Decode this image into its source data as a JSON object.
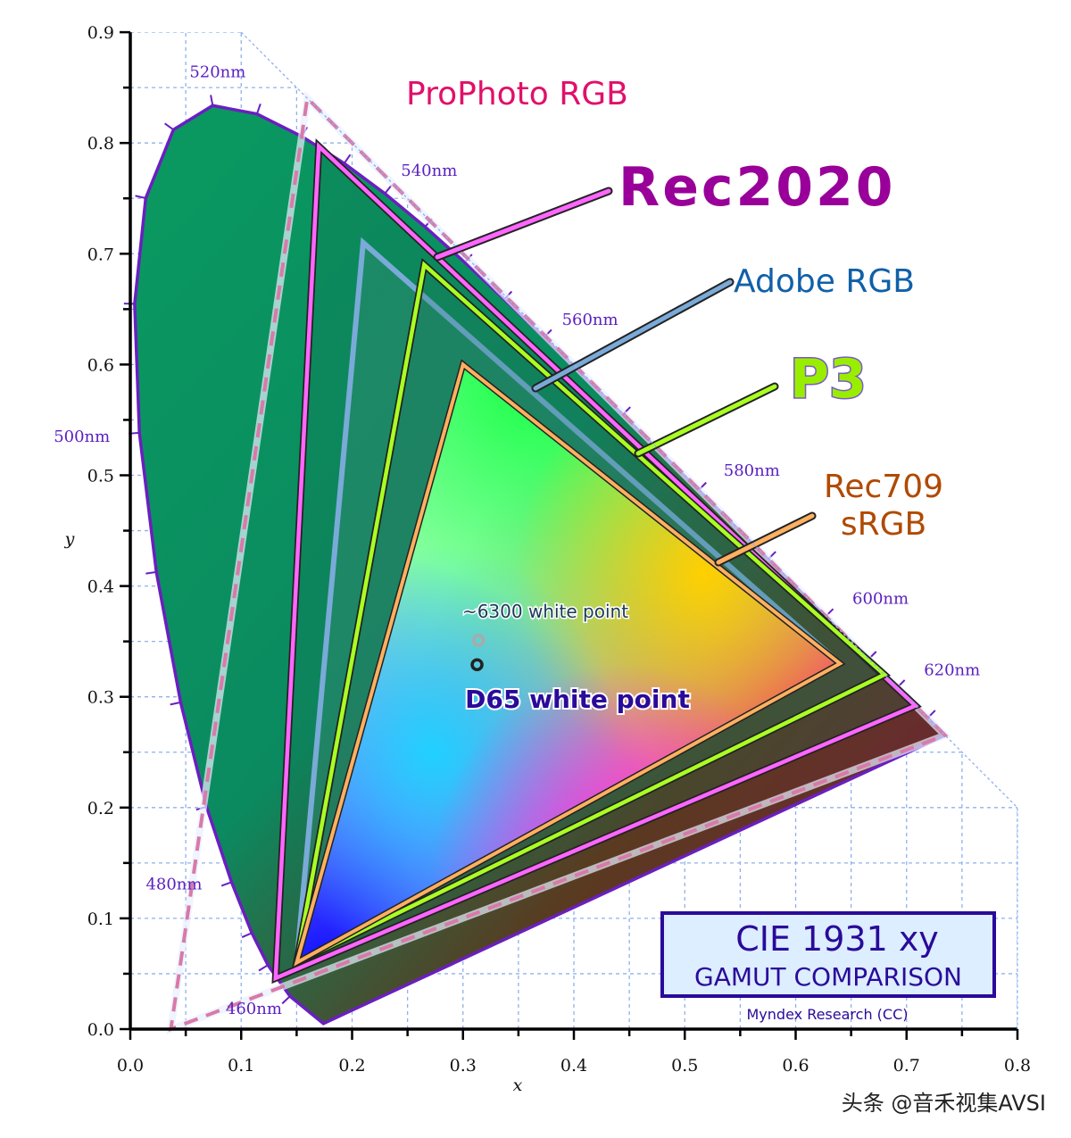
{
  "chart_data": {
    "type": "scatter",
    "title": "CIE 1931 xy",
    "subtitle": "GAMUT COMPARISON",
    "credit": "Myndex Research (CC)",
    "xlabel": "x",
    "ylabel": "y",
    "xlim": [
      0,
      0.8
    ],
    "ylim": [
      0,
      0.9
    ],
    "grid": true,
    "x_ticks": [
      "0.0",
      "0.1",
      "0.2",
      "0.3",
      "0.4",
      "0.5",
      "0.6",
      "0.7",
      "0.8"
    ],
    "y_ticks": [
      "0.0",
      "0.1",
      "0.2",
      "0.3",
      "0.4",
      "0.5",
      "0.6",
      "0.7",
      "0.8",
      "0.9"
    ],
    "spectral_locus": [
      [
        380,
        0.1741,
        0.005
      ],
      [
        460,
        0.144,
        0.0297
      ],
      [
        470,
        0.1241,
        0.0578
      ],
      [
        475,
        0.1096,
        0.0868
      ],
      [
        480,
        0.0913,
        0.1327
      ],
      [
        485,
        0.0687,
        0.2007
      ],
      [
        490,
        0.0454,
        0.295
      ],
      [
        495,
        0.0235,
        0.4127
      ],
      [
        500,
        0.0082,
        0.5384
      ],
      [
        505,
        0.0039,
        0.6548
      ],
      [
        510,
        0.0139,
        0.7502
      ],
      [
        515,
        0.0389,
        0.812
      ],
      [
        520,
        0.0743,
        0.8338
      ],
      [
        525,
        0.1142,
        0.8262
      ],
      [
        530,
        0.1547,
        0.8059
      ],
      [
        535,
        0.1929,
        0.7816
      ],
      [
        540,
        0.2296,
        0.7543
      ],
      [
        545,
        0.2658,
        0.7243
      ],
      [
        550,
        0.3016,
        0.6923
      ],
      [
        555,
        0.3373,
        0.6589
      ],
      [
        560,
        0.3731,
        0.6245
      ],
      [
        570,
        0.4441,
        0.5547
      ],
      [
        580,
        0.5125,
        0.4866
      ],
      [
        590,
        0.5752,
        0.4242
      ],
      [
        600,
        0.627,
        0.3725
      ],
      [
        610,
        0.6658,
        0.334
      ],
      [
        620,
        0.6915,
        0.3083
      ],
      [
        640,
        0.719,
        0.2809
      ],
      [
        700,
        0.7347,
        0.2653
      ]
    ],
    "wavelength_labels": [
      {
        "nm": 460,
        "label": "460nm"
      },
      {
        "nm": 480,
        "label": "480nm"
      },
      {
        "nm": 500,
        "label": "500nm"
      },
      {
        "nm": 520,
        "label": "520nm"
      },
      {
        "nm": 540,
        "label": "540nm"
      },
      {
        "nm": 560,
        "label": "560nm"
      },
      {
        "nm": 580,
        "label": "580nm"
      },
      {
        "nm": 600,
        "label": "600nm"
      },
      {
        "nm": 620,
        "label": "620nm"
      }
    ],
    "series": [
      {
        "name": "ProPhoto RGB",
        "color": "#e0106a",
        "stroke": "#d87aa8",
        "points": [
          [
            0.7347,
            0.2653
          ],
          [
            0.1596,
            0.8404
          ],
          [
            0.0366,
            0.0001
          ]
        ]
      },
      {
        "name": "Rec2020",
        "color": "#990099",
        "stroke": "#ff66ff",
        "points": [
          [
            0.708,
            0.292
          ],
          [
            0.17,
            0.797
          ],
          [
            0.131,
            0.046
          ]
        ]
      },
      {
        "name": "Adobe RGB",
        "color": "#1060a8",
        "stroke": "#7aaad8",
        "points": [
          [
            0.64,
            0.33
          ],
          [
            0.21,
            0.71
          ],
          [
            0.15,
            0.06
          ]
        ]
      },
      {
        "name": "P3",
        "color": "#99ee00",
        "stroke": "#aaff22",
        "points": [
          [
            0.68,
            0.32
          ],
          [
            0.265,
            0.69
          ],
          [
            0.15,
            0.06
          ]
        ]
      },
      {
        "name": "Rec709 sRGB",
        "label_lines": [
          "Rec709",
          "sRGB"
        ],
        "color": "#b04a00",
        "stroke": "#ffb060",
        "points": [
          [
            0.64,
            0.33
          ],
          [
            0.3,
            0.6
          ],
          [
            0.15,
            0.06
          ]
        ]
      }
    ],
    "white_points": [
      {
        "label": "~6300 white point",
        "x": 0.314,
        "y": 0.351
      },
      {
        "label": "D65 white point",
        "x": 0.3127,
        "y": 0.329
      }
    ]
  },
  "watermark": "头条 @音禾视集AVSI"
}
